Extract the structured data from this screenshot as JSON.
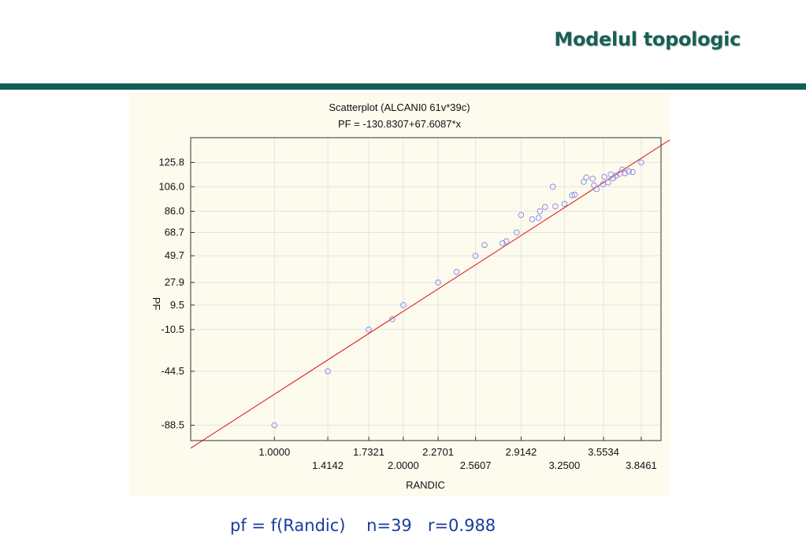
{
  "slide": {
    "title": "Modelul topologic",
    "caption": "pf = f(Randic)    n=39   r=0.988"
  },
  "colors": {
    "title": "#1a5f56",
    "rule": "#135e56",
    "panel": "#fdfaee",
    "points": "#8a90e8",
    "fit_line": "#dd2222",
    "caption": "#1c3aa0"
  },
  "chart_data": {
    "type": "scatter",
    "title": "Scatterplot (ALCANI0 61v*39c)",
    "subtitle": "PF = -130.8307+67.6087*x",
    "xlabel": "RANDIC",
    "ylabel": "PF",
    "xlim": [
      0.35,
      4.0
    ],
    "ylim": [
      -101.0,
      146.0
    ],
    "grid": true,
    "x_ticks_row1": [
      "1.0000",
      "1.7321",
      "2.2701",
      "2.9142",
      "3.5534"
    ],
    "x_ticks_row2": [
      "1.4142",
      "2.0000",
      "2.5607",
      "3.2500",
      "3.8461"
    ],
    "y_ticks": [
      "125.8",
      "106.0",
      "86.0",
      "68.7",
      "49.7",
      "27.9",
      "9.5",
      "-10.5",
      "-44.5",
      "-88.5"
    ],
    "fit": {
      "intercept": -130.8307,
      "slope": 67.6087
    },
    "points": [
      [
        1.0,
        -88.5
      ],
      [
        1.414,
        -44.5
      ],
      [
        1.732,
        -10.5
      ],
      [
        1.914,
        -2.0
      ],
      [
        2.0,
        9.5
      ],
      [
        2.27,
        27.9
      ],
      [
        2.414,
        36.5
      ],
      [
        2.56,
        49.7
      ],
      [
        2.63,
        58.5
      ],
      [
        2.77,
        60.0
      ],
      [
        2.8,
        61.5
      ],
      [
        2.88,
        68.7
      ],
      [
        2.914,
        83.0
      ],
      [
        3.0,
        79.5
      ],
      [
        3.05,
        80.5
      ],
      [
        3.06,
        86.0
      ],
      [
        3.1,
        89.5
      ],
      [
        3.16,
        106.0
      ],
      [
        3.18,
        90.0
      ],
      [
        3.25,
        92.0
      ],
      [
        3.31,
        99.0
      ],
      [
        3.33,
        99.5
      ],
      [
        3.4,
        110.0
      ],
      [
        3.42,
        113.5
      ],
      [
        3.47,
        112.5
      ],
      [
        3.48,
        107.0
      ],
      [
        3.55,
        108.0
      ],
      [
        3.56,
        114.0
      ],
      [
        3.59,
        109.5
      ],
      [
        3.61,
        116.0
      ],
      [
        3.63,
        113.0
      ],
      [
        3.65,
        115.0
      ],
      [
        3.68,
        116.5
      ],
      [
        3.72,
        117.0
      ],
      [
        3.75,
        118.5
      ],
      [
        3.78,
        118.0
      ],
      [
        3.846,
        125.8
      ],
      [
        3.5,
        104.0
      ],
      [
        3.7,
        120.0
      ]
    ]
  }
}
